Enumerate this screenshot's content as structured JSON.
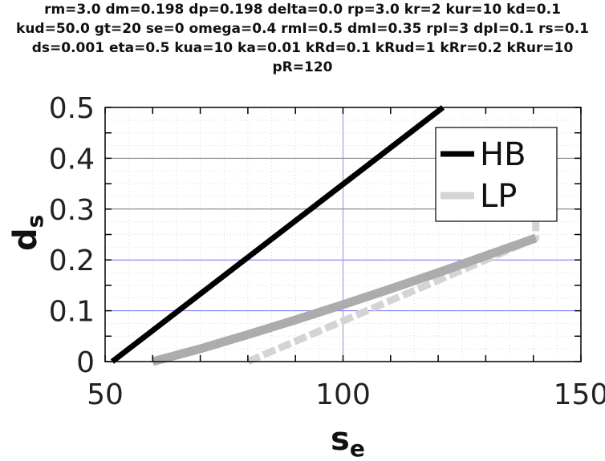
{
  "title_lines": [
    "rm=3.0 dm=0.198 dp=0.198 delta=0.0 rp=3.0 kr=2 kur=10 kd=0.1",
    "kud=50.0 gt=20 se=0 omega=0.4 rmI=0.5 dmI=0.35 rpI=3 dpI=0.1 rs=0.1",
    "ds=0.001 eta=0.5 kua=10 ka=0.01 kRd=0.1 kRud=1 kRr=0.2 kRur=10",
    "pR=120"
  ],
  "chart_data": {
    "type": "line",
    "xlabel_main": "s",
    "xlabel_sub": "e",
    "ylabel_main": "d",
    "ylabel_sub": "s",
    "xlim": [
      50,
      150
    ],
    "ylim": [
      0,
      0.5
    ],
    "xticks": [
      {
        "value": 50,
        "label": "50"
      },
      {
        "value": 100,
        "label": "100"
      },
      {
        "value": 150,
        "label": "150"
      }
    ],
    "yticks": [
      {
        "value": 0,
        "label": "0"
      },
      {
        "value": 0.1,
        "label": "0.1"
      },
      {
        "value": 0.2,
        "label": "0.2"
      },
      {
        "value": 0.3,
        "label": "0.3"
      },
      {
        "value": 0.4,
        "label": "0.4"
      },
      {
        "value": 0.5,
        "label": "0.5"
      }
    ],
    "hlines": [
      {
        "y": 0.1,
        "color": "#6f6fff"
      },
      {
        "y": 0.2,
        "color": "#6f6fff"
      },
      {
        "y": 0.3,
        "color": "#777777"
      },
      {
        "y": 0.4,
        "color": "#777777"
      }
    ],
    "vlines": [
      {
        "x": 100,
        "color": "#8f8fd0"
      }
    ],
    "legend_position": "top-right",
    "series": [
      {
        "name": "HB",
        "color": "#000000",
        "points": [
          [
            51.5,
            0.0
          ],
          [
            121,
            0.5
          ]
        ]
      },
      {
        "name": "LP",
        "color": "#d4d4d4",
        "points": [
          [
            80,
            0.0
          ],
          [
            90,
            0.04
          ],
          [
            100,
            0.08
          ],
          [
            110,
            0.12
          ],
          [
            120,
            0.16
          ],
          [
            130,
            0.2
          ],
          [
            140.5,
            0.243
          ],
          [
            140.5,
            0.28
          ]
        ]
      },
      {
        "name": "",
        "color": "#acacac",
        "points": [
          [
            60,
            0.0
          ],
          [
            70,
            0.025
          ],
          [
            80,
            0.053
          ],
          [
            90,
            0.082
          ],
          [
            100,
            0.112
          ],
          [
            110,
            0.143
          ],
          [
            120,
            0.175
          ],
          [
            130,
            0.208
          ],
          [
            140.5,
            0.243
          ]
        ]
      }
    ]
  }
}
